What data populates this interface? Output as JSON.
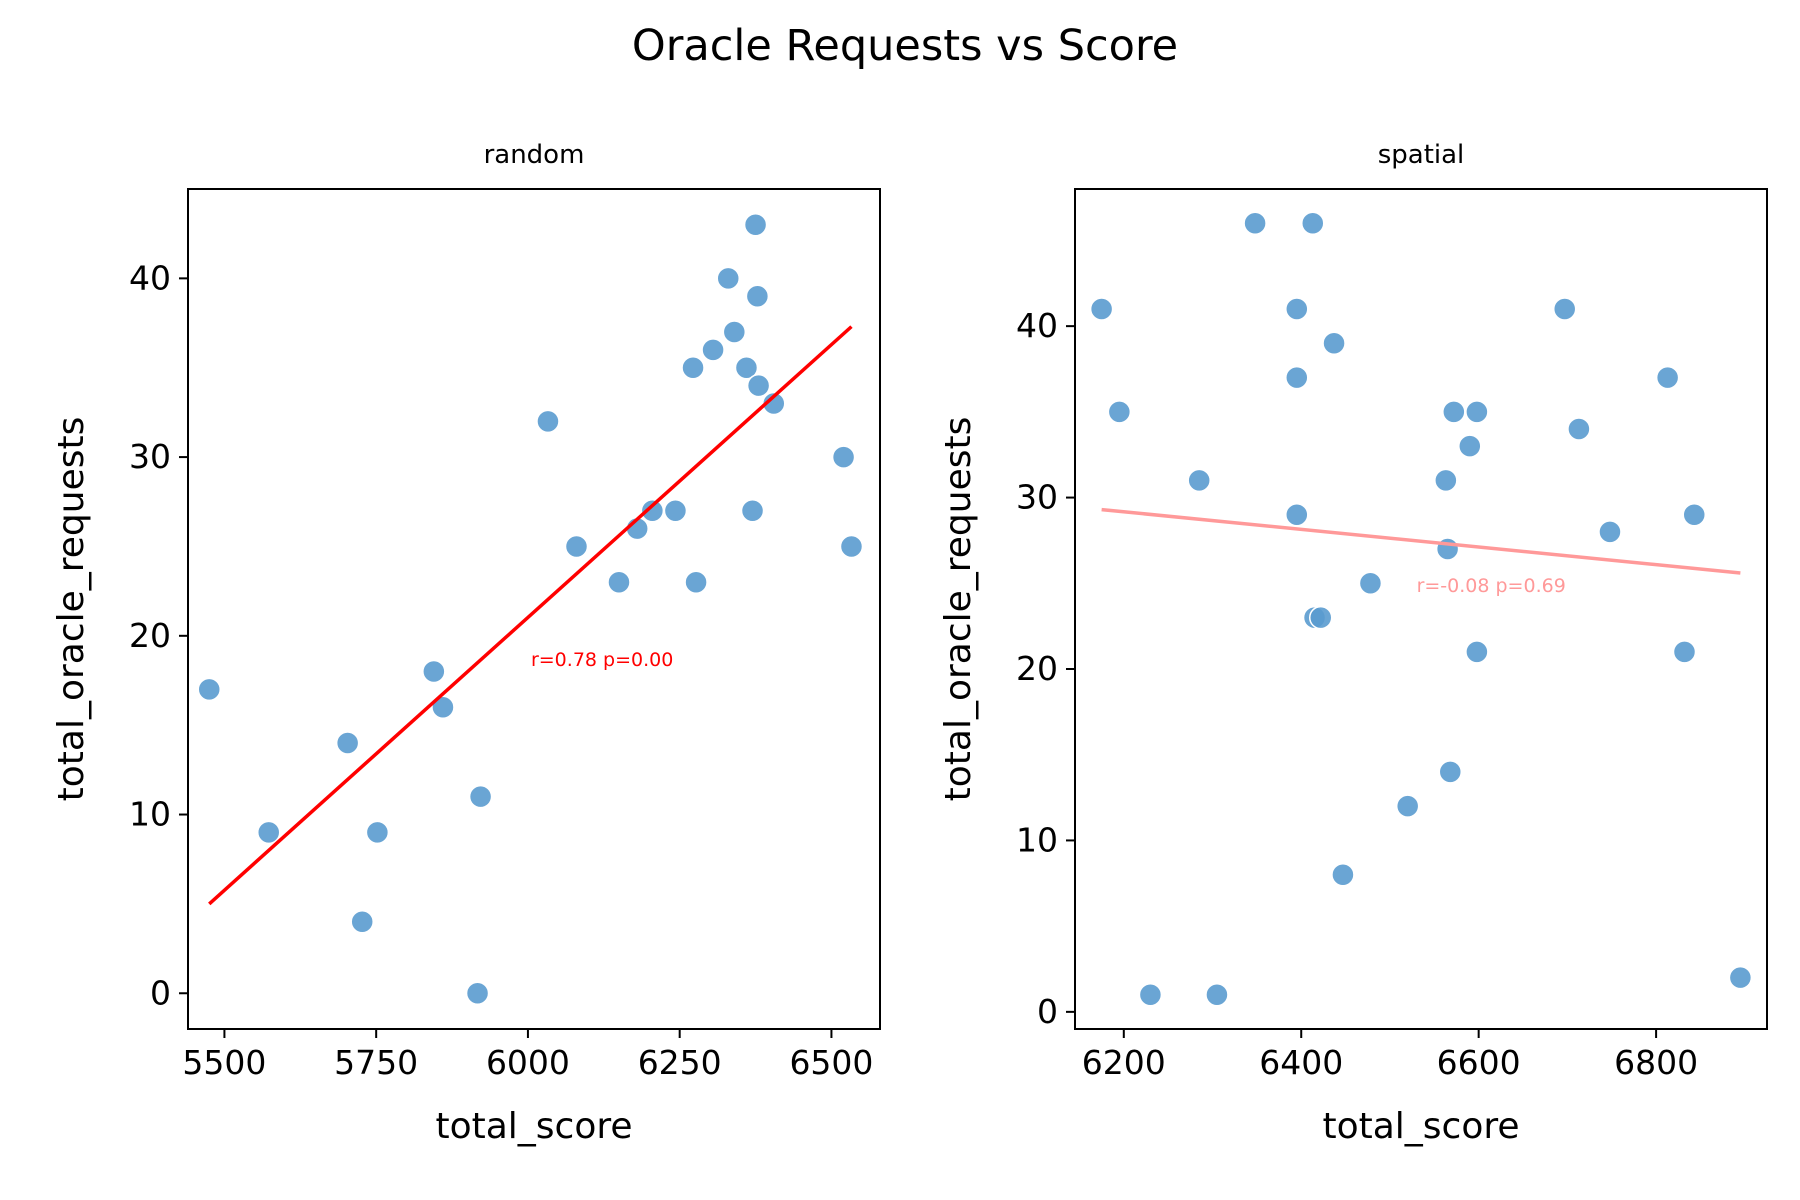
{
  "figure_title": "Oracle Requests vs Score",
  "chart_data": [
    {
      "type": "scatter",
      "title": "random",
      "xlabel": "total_score",
      "ylabel": "total_oracle_requests",
      "xlim": [
        5440,
        6580
      ],
      "ylim": [
        -2,
        45
      ],
      "xticks": [
        5500,
        5750,
        6000,
        6250,
        6500
      ],
      "yticks": [
        0,
        10,
        20,
        30,
        40
      ],
      "point_color": "#5a9bcf",
      "trend_color": "#ff0000",
      "points": [
        {
          "x": 5475,
          "y": 17
        },
        {
          "x": 5573,
          "y": 9
        },
        {
          "x": 5703,
          "y": 14
        },
        {
          "x": 5727,
          "y": 4
        },
        {
          "x": 5752,
          "y": 9
        },
        {
          "x": 5845,
          "y": 18
        },
        {
          "x": 5860,
          "y": 16
        },
        {
          "x": 5917,
          "y": 0
        },
        {
          "x": 5922,
          "y": 11
        },
        {
          "x": 6033,
          "y": 32
        },
        {
          "x": 6080,
          "y": 25
        },
        {
          "x": 6150,
          "y": 23
        },
        {
          "x": 6180,
          "y": 26
        },
        {
          "x": 6205,
          "y": 27
        },
        {
          "x": 6243,
          "y": 27
        },
        {
          "x": 6272,
          "y": 35
        },
        {
          "x": 6277,
          "y": 23
        },
        {
          "x": 6305,
          "y": 36
        },
        {
          "x": 6330,
          "y": 40
        },
        {
          "x": 6340,
          "y": 37
        },
        {
          "x": 6360,
          "y": 35
        },
        {
          "x": 6370,
          "y": 27
        },
        {
          "x": 6375,
          "y": 43
        },
        {
          "x": 6378,
          "y": 39
        },
        {
          "x": 6380,
          "y": 34
        },
        {
          "x": 6405,
          "y": 33
        },
        {
          "x": 6520,
          "y": 30
        },
        {
          "x": 6533,
          "y": 25
        }
      ],
      "trend_line": {
        "x1": 5475,
        "y1": 5.0,
        "x2": 6533,
        "y2": 37.3
      },
      "annotation": {
        "text": "r=0.78 p=0.00",
        "x": 6005,
        "y": 18.3
      }
    },
    {
      "type": "scatter",
      "title": "spatial",
      "xlabel": "total_score",
      "ylabel": "total_oracle_requests",
      "xlim": [
        6145,
        6925
      ],
      "ylim": [
        -1,
        48
      ],
      "xticks": [
        6200,
        6400,
        6600,
        6800
      ],
      "yticks": [
        0,
        10,
        20,
        30,
        40
      ],
      "point_color": "#5a9bcf",
      "trend_color": "#ff9999",
      "points": [
        {
          "x": 6175,
          "y": 41
        },
        {
          "x": 6195,
          "y": 35
        },
        {
          "x": 6230,
          "y": 1
        },
        {
          "x": 6285,
          "y": 31
        },
        {
          "x": 6305,
          "y": 1
        },
        {
          "x": 6348,
          "y": 46
        },
        {
          "x": 6395,
          "y": 41
        },
        {
          "x": 6395,
          "y": 37
        },
        {
          "x": 6395,
          "y": 29
        },
        {
          "x": 6413,
          "y": 46
        },
        {
          "x": 6415,
          "y": 23
        },
        {
          "x": 6422,
          "y": 23
        },
        {
          "x": 6437,
          "y": 39
        },
        {
          "x": 6447,
          "y": 8
        },
        {
          "x": 6478,
          "y": 25
        },
        {
          "x": 6520,
          "y": 12
        },
        {
          "x": 6563,
          "y": 31
        },
        {
          "x": 6565,
          "y": 27
        },
        {
          "x": 6568,
          "y": 14
        },
        {
          "x": 6572,
          "y": 35
        },
        {
          "x": 6590,
          "y": 33
        },
        {
          "x": 6598,
          "y": 35
        },
        {
          "x": 6598,
          "y": 21
        },
        {
          "x": 6697,
          "y": 41
        },
        {
          "x": 6713,
          "y": 34
        },
        {
          "x": 6748,
          "y": 28
        },
        {
          "x": 6813,
          "y": 37
        },
        {
          "x": 6832,
          "y": 21
        },
        {
          "x": 6843,
          "y": 29
        },
        {
          "x": 6895,
          "y": 2
        }
      ],
      "trend_line": {
        "x1": 6175,
        "y1": 29.3,
        "x2": 6895,
        "y2": 25.6
      },
      "annotation": {
        "text": "r=-0.08 p=0.69",
        "x": 6530,
        "y": 24.5
      }
    }
  ]
}
